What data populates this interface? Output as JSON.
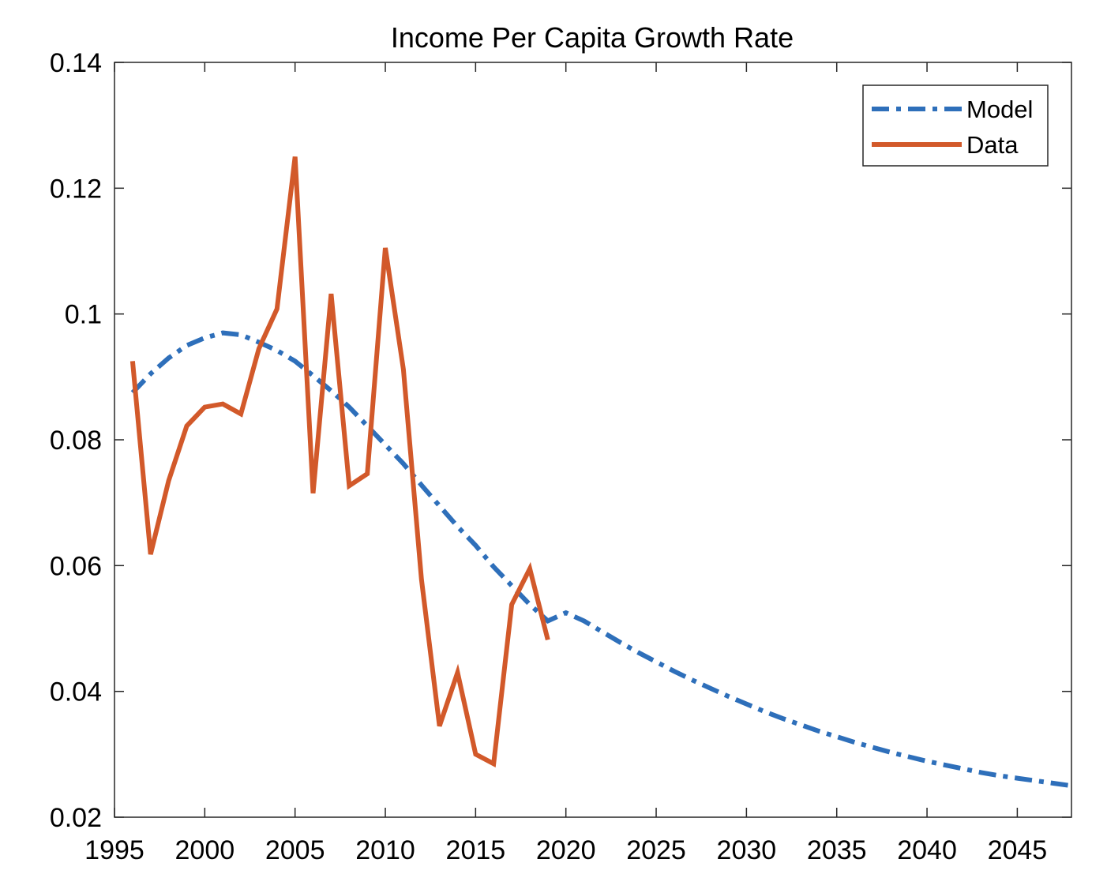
{
  "chart_data": {
    "type": "line",
    "title": "Income Per Capita Growth Rate",
    "xlabel": "",
    "ylabel": "",
    "xlim": [
      1995,
      2048
    ],
    "ylim": [
      0.02,
      0.14
    ],
    "xticks": [
      1995,
      2000,
      2005,
      2010,
      2015,
      2020,
      2025,
      2030,
      2035,
      2040,
      2045
    ],
    "xtick_labels": [
      "1995",
      "2000",
      "2005",
      "2010",
      "2015",
      "2020",
      "2025",
      "2030",
      "2035",
      "2040",
      "2045"
    ],
    "yticks": [
      0.02,
      0.04,
      0.06,
      0.08,
      0.1,
      0.12,
      0.14
    ],
    "ytick_labels": [
      "0.02",
      "0.04",
      "0.06",
      "0.08",
      "0.1",
      "0.12",
      "0.14"
    ],
    "grid": false,
    "legend_position": "top-right",
    "series": [
      {
        "name": "Model",
        "color": "#2e6fba",
        "style": "dash-dot",
        "x": [
          1996,
          1997,
          1998,
          1999,
          2000,
          2001,
          2002,
          2003,
          2004,
          2005,
          2006,
          2007,
          2008,
          2009,
          2010,
          2011,
          2012,
          2013,
          2014,
          2015,
          2016,
          2017,
          2018,
          2019,
          2020,
          2021,
          2022,
          2023,
          2024,
          2025,
          2026,
          2027,
          2028,
          2029,
          2030,
          2031,
          2032,
          2033,
          2034,
          2035,
          2036,
          2037,
          2038,
          2039,
          2040,
          2041,
          2042,
          2043,
          2044,
          2045,
          2046,
          2047,
          2048
        ],
        "y": [
          0.0875,
          0.0905,
          0.093,
          0.095,
          0.0962,
          0.097,
          0.0967,
          0.0955,
          0.0942,
          0.0925,
          0.0902,
          0.0878,
          0.0852,
          0.0822,
          0.0792,
          0.0762,
          0.0728,
          0.0695,
          0.0662,
          0.0632,
          0.0598,
          0.0568,
          0.0538,
          0.0512,
          0.0525,
          0.0512,
          0.0495,
          0.0478,
          0.0462,
          0.0447,
          0.0432,
          0.0418,
          0.0405,
          0.0392,
          0.038,
          0.0368,
          0.0357,
          0.0347,
          0.0337,
          0.0328,
          0.0319,
          0.0311,
          0.0303,
          0.0296,
          0.0289,
          0.0283,
          0.0277,
          0.0271,
          0.0266,
          0.0262,
          0.0258,
          0.0254,
          0.025
        ]
      },
      {
        "name": "Data",
        "color": "#d2592a",
        "style": "solid",
        "x": [
          1996,
          1997,
          1998,
          1999,
          2000,
          2001,
          2002,
          2003,
          2004,
          2005,
          2006,
          2007,
          2008,
          2009,
          2010,
          2011,
          2012,
          2013,
          2014,
          2015,
          2016,
          2017,
          2018,
          2019
        ],
        "y": [
          0.0925,
          0.0618,
          0.0735,
          0.0822,
          0.0852,
          0.0857,
          0.0841,
          0.0945,
          0.1008,
          0.125,
          0.0715,
          0.1032,
          0.0727,
          0.0746,
          0.1105,
          0.0912,
          0.0578,
          0.0345,
          0.043,
          0.03,
          0.0285,
          0.0538,
          0.0595,
          0.0482
        ]
      }
    ]
  }
}
